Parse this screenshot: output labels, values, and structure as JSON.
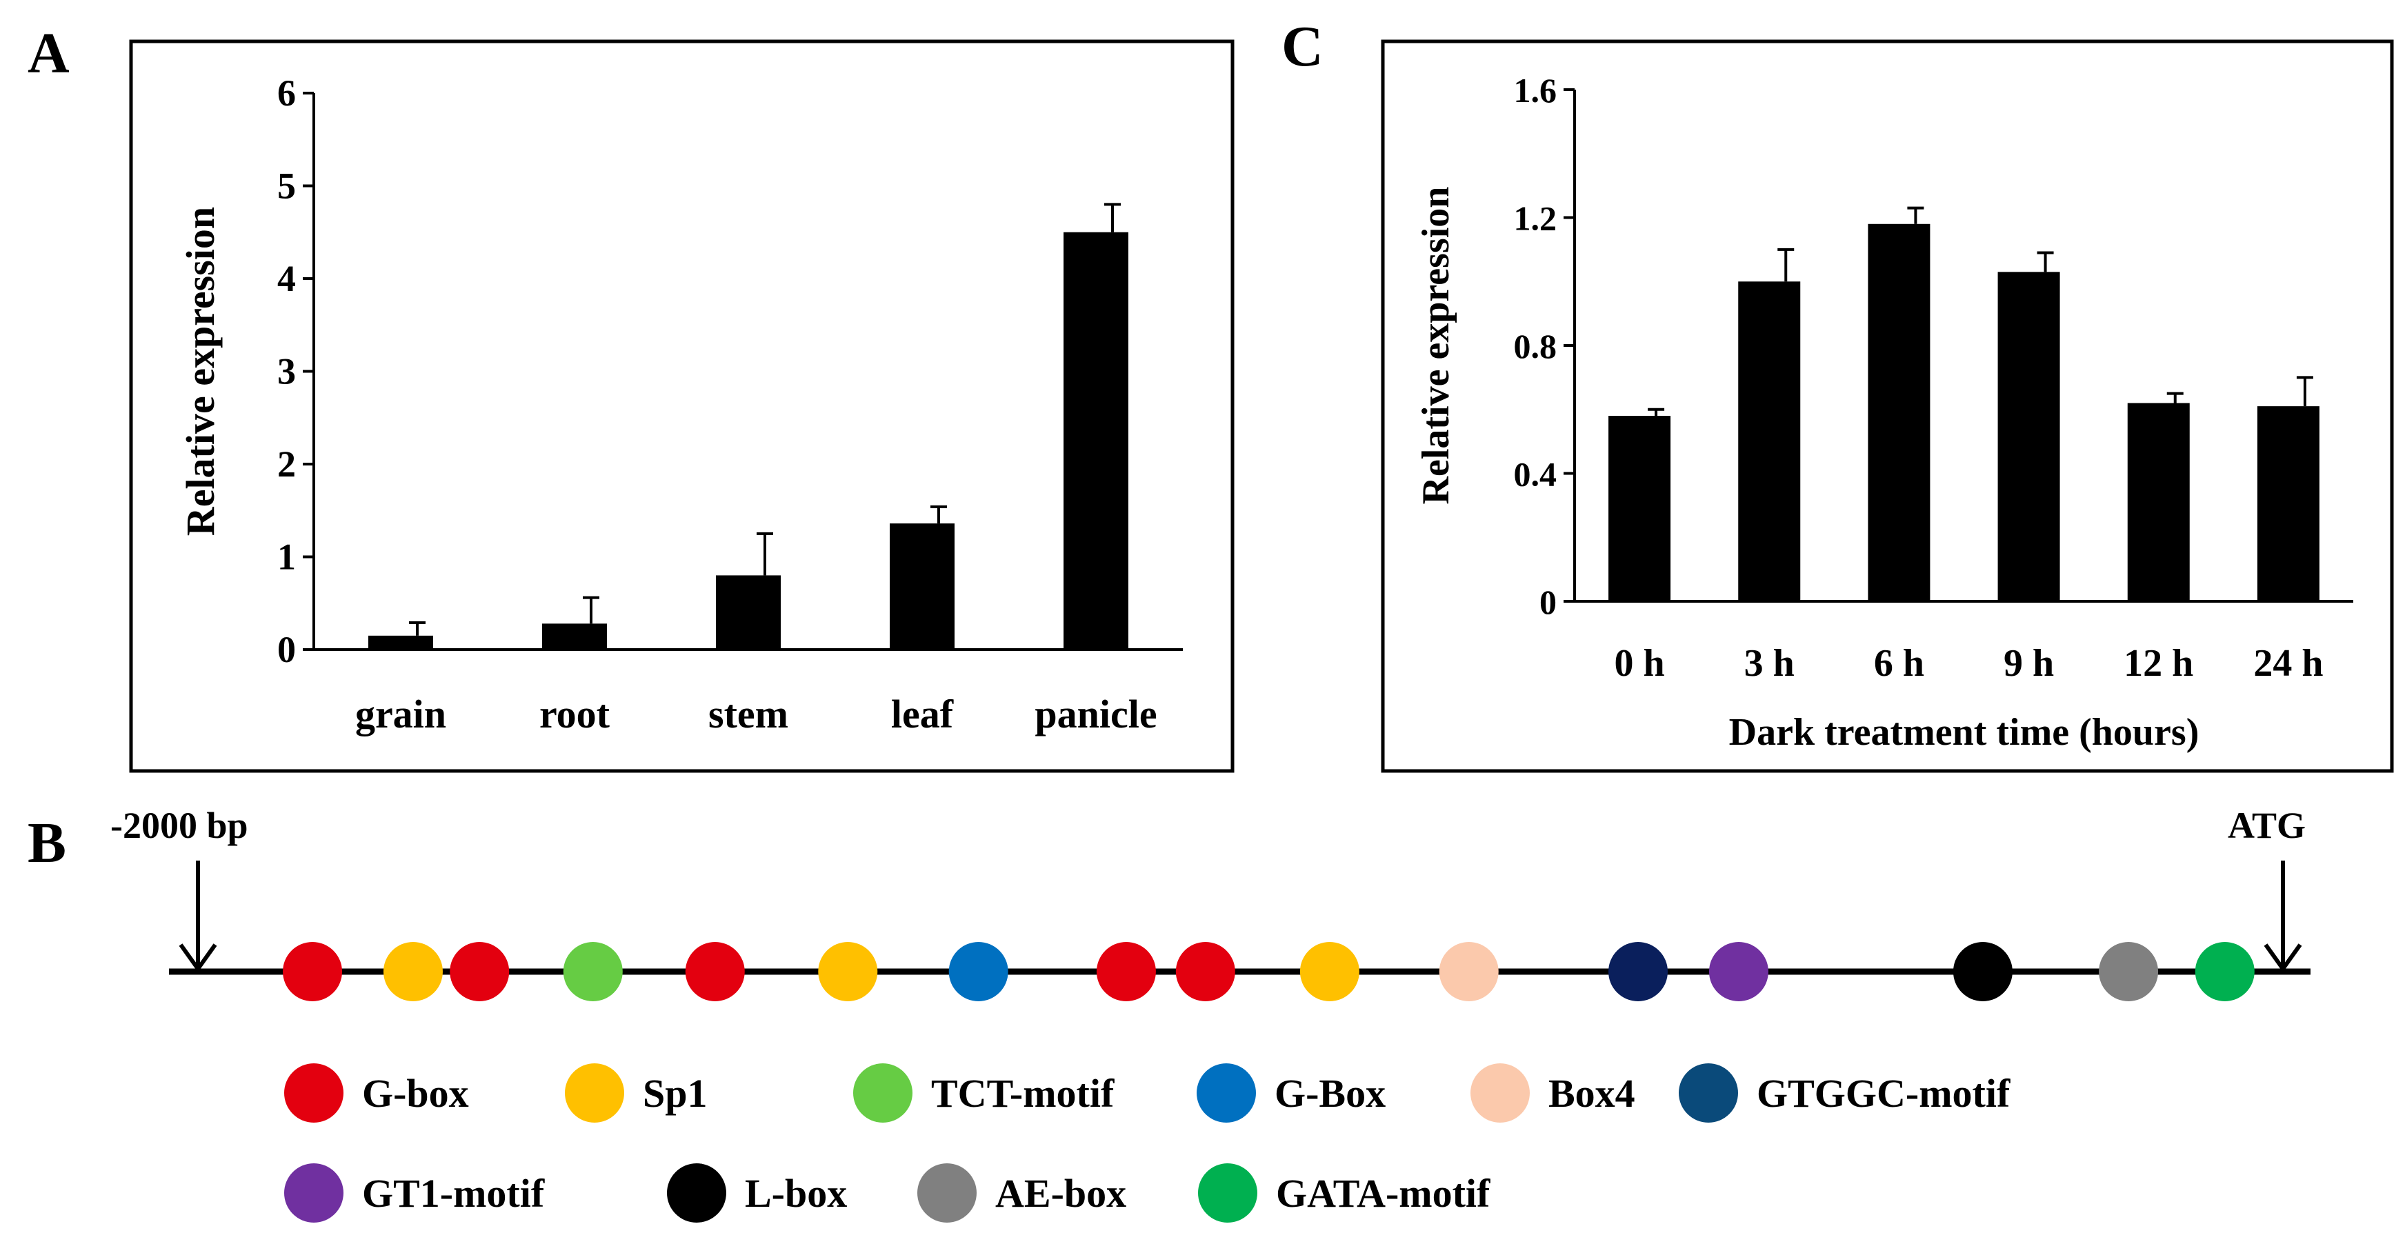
{
  "panels": {
    "a": {
      "label": "A"
    },
    "b": {
      "label": "B"
    },
    "c": {
      "label": "C"
    }
  },
  "chart_data": [
    {
      "id": "A",
      "type": "bar",
      "title": "",
      "xlabel": "",
      "ylabel": "Relative expression",
      "categories": [
        "grain",
        "root",
        "stem",
        "leaf",
        "panicle"
      ],
      "values": [
        0.15,
        0.28,
        0.8,
        1.36,
        4.5
      ],
      "errors": [
        0.14,
        0.28,
        0.45,
        0.18,
        0.3
      ],
      "ylim": [
        0,
        6
      ],
      "yticks": [
        0,
        1,
        2,
        3,
        4,
        5,
        6
      ],
      "ytick_labels": [
        "0",
        "1",
        "2",
        "3",
        "4",
        "5",
        "6"
      ],
      "grid": false,
      "bar_color": "#000000"
    },
    {
      "id": "C",
      "type": "bar",
      "title": "",
      "xlabel": "Dark treatment time (hours)",
      "ylabel": "Relative expression",
      "categories": [
        "0 h",
        "3 h",
        "6 h",
        "9 h",
        "12 h",
        "24 h"
      ],
      "values": [
        0.58,
        1.0,
        1.18,
        1.03,
        0.62,
        0.61
      ],
      "errors": [
        0.02,
        0.1,
        0.05,
        0.06,
        0.03,
        0.09
      ],
      "ylim": [
        0,
        1.6
      ],
      "yticks": [
        0,
        0.4,
        0.8,
        1.2,
        1.6
      ],
      "ytick_labels": [
        "0",
        "0.4",
        "0.8",
        "1.2",
        "1.6"
      ],
      "grid": false,
      "bar_color": "#000000"
    }
  ],
  "promoter": {
    "start_label": "-2000 bp",
    "end_label": "ATG",
    "motifs": [
      {
        "name": "G-box",
        "color": "#e3000f",
        "pos": 0.067
      },
      {
        "name": "Sp1",
        "color": "#ffc000",
        "pos": 0.114
      },
      {
        "name": "G-box",
        "color": "#e3000f",
        "pos": 0.145
      },
      {
        "name": "TCT-motif",
        "color": "#66cc44",
        "pos": 0.198
      },
      {
        "name": "G-box",
        "color": "#e3000f",
        "pos": 0.255
      },
      {
        "name": "Sp1",
        "color": "#ffc000",
        "pos": 0.317
      },
      {
        "name": "G-Box",
        "color": "#0070c0",
        "pos": 0.378
      },
      {
        "name": "G-box",
        "color": "#e3000f",
        "pos": 0.447
      },
      {
        "name": "G-box",
        "color": "#e3000f",
        "pos": 0.484
      },
      {
        "name": "Sp1",
        "color": "#ffc000",
        "pos": 0.542
      },
      {
        "name": "Box4",
        "color": "#fbc9ac",
        "pos": 0.607
      },
      {
        "name": "GTGGC-motif",
        "color": "#0a1f5c",
        "pos": 0.686
      },
      {
        "name": "GT1-motif",
        "color": "#7030a0",
        "pos": 0.733
      },
      {
        "name": "L-box",
        "color": "#000000",
        "pos": 0.847
      },
      {
        "name": "AE-box",
        "color": "#808080",
        "pos": 0.915
      },
      {
        "name": "GATA-motif",
        "color": "#00b050",
        "pos": 0.96
      }
    ]
  },
  "legend": [
    {
      "label": "G-box",
      "color": "#e3000f"
    },
    {
      "label": "Sp1",
      "color": "#ffc000"
    },
    {
      "label": "TCT-motif",
      "color": "#66cc44"
    },
    {
      "label": "G-Box",
      "color": "#0070c0"
    },
    {
      "label": "Box4",
      "color": "#fbc9ac"
    },
    {
      "label": "GTGGC-motif",
      "color": "#0a4a7a"
    },
    {
      "label": "GT1-motif",
      "color": "#7030a0"
    },
    {
      "label": "L-box",
      "color": "#000000"
    },
    {
      "label": "AE-box",
      "color": "#808080"
    },
    {
      "label": "GATA-motif",
      "color": "#00b050"
    }
  ]
}
